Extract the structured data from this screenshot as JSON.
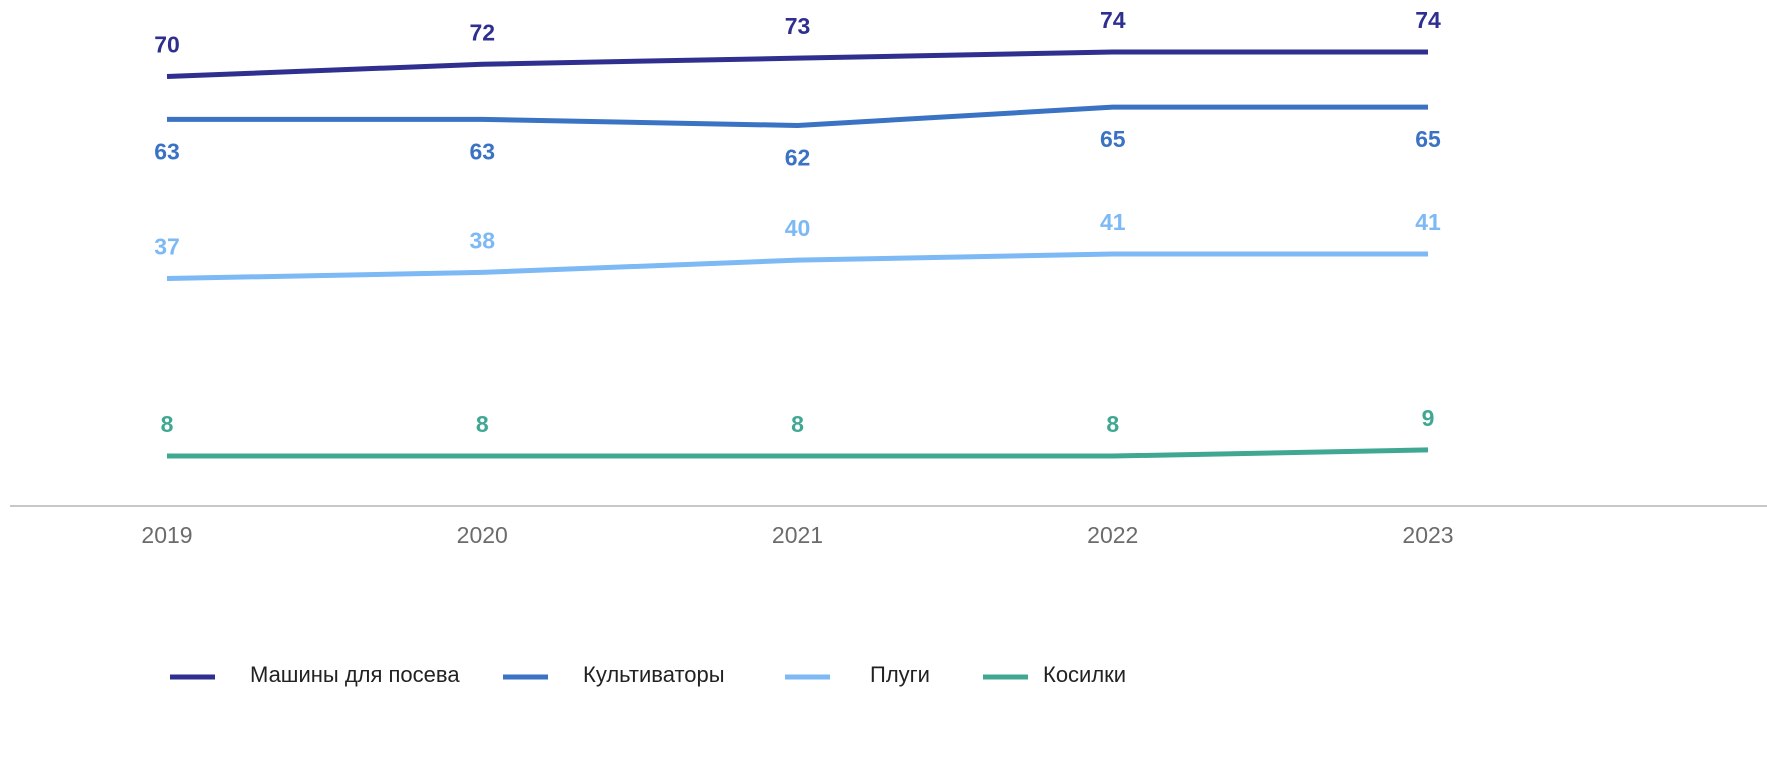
{
  "chart_data": {
    "type": "line",
    "categories": [
      "2019",
      "2020",
      "2021",
      "2022",
      "2023"
    ],
    "series": [
      {
        "name": "Машины для посева",
        "color": "#2f2f8f",
        "values": [
          70,
          72,
          73,
          74,
          74
        ]
      },
      {
        "name": "Культиваторы",
        "color": "#3a72c4",
        "values": [
          63,
          63,
          62,
          65,
          65
        ],
        "label_position": "below"
      },
      {
        "name": "Плуги",
        "color": "#7cb9f5",
        "values": [
          37,
          38,
          40,
          41,
          41
        ]
      },
      {
        "name": "Косилки",
        "color": "#40a892",
        "values": [
          8,
          8,
          8,
          8,
          9
        ]
      }
    ],
    "ylim": [
      0,
      82.5
    ],
    "legend": "bottom"
  }
}
